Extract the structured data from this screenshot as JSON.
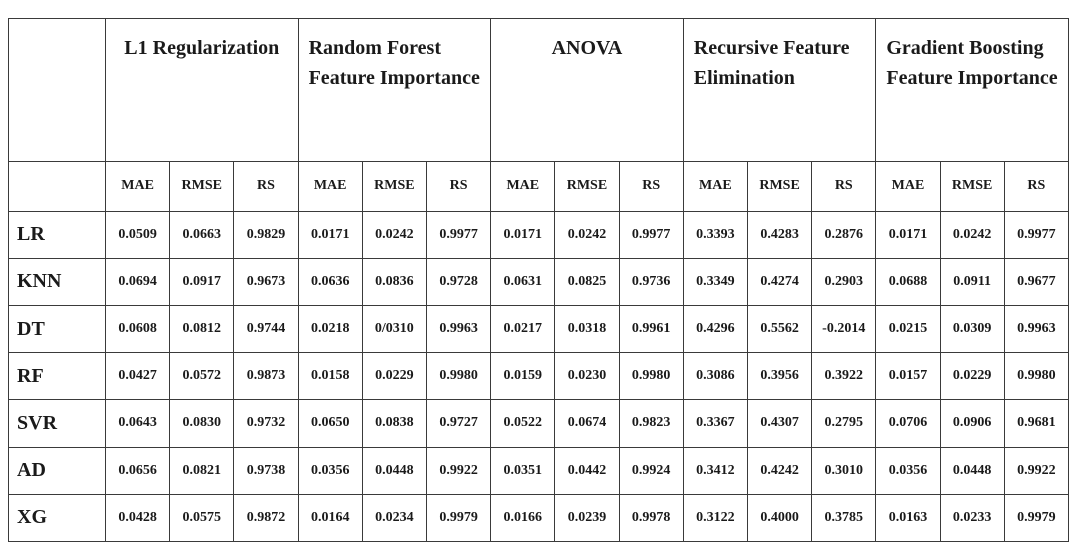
{
  "methods": [
    {
      "name": "L1 Regularization",
      "align": "center"
    },
    {
      "name": "Random Forest Feature Importance",
      "align": "left"
    },
    {
      "name": "ANOVA",
      "align": "center"
    },
    {
      "name": "Recursive Feature Elimination",
      "align": "left"
    },
    {
      "name": "Gradient Boosting Feature Importance",
      "align": "left"
    }
  ],
  "metrics": [
    "MAE",
    "RMSE",
    "RS"
  ],
  "rows": [
    {
      "model": "LR",
      "values": [
        "0.0509",
        "0.0663",
        "0.9829",
        "0.0171",
        "0.0242",
        "0.9977",
        "0.0171",
        "0.0242",
        "0.9977",
        "0.3393",
        "0.4283",
        "0.2876",
        "0.0171",
        "0.0242",
        "0.9977"
      ]
    },
    {
      "model": "KNN",
      "values": [
        "0.0694",
        "0.0917",
        "0.9673",
        "0.0636",
        "0.0836",
        "0.9728",
        "0.0631",
        "0.0825",
        "0.9736",
        "0.3349",
        "0.4274",
        "0.2903",
        "0.0688",
        "0.0911",
        "0.9677"
      ]
    },
    {
      "model": "DT",
      "values": [
        "0.0608",
        "0.0812",
        "0.9744",
        "0.0218",
        "0/0310",
        "0.9963",
        "0.0217",
        "0.0318",
        "0.9961",
        "0.4296",
        "0.5562",
        "-0.2014",
        "0.0215",
        "0.0309",
        "0.9963"
      ]
    },
    {
      "model": "RF",
      "values": [
        "0.0427",
        "0.0572",
        "0.9873",
        "0.0158",
        "0.0229",
        "0.9980",
        "0.0159",
        "0.0230",
        "0.9980",
        "0.3086",
        "0.3956",
        "0.3922",
        "0.0157",
        "0.0229",
        "0.9980"
      ]
    },
    {
      "model": "SVR",
      "values": [
        "0.0643",
        "0.0830",
        "0.9732",
        "0.0650",
        "0.0838",
        "0.9727",
        "0.0522",
        "0.0674",
        "0.9823",
        "0.3367",
        "0.4307",
        "0.2795",
        "0.0706",
        "0.0906",
        "0.9681"
      ]
    },
    {
      "model": "AD",
      "values": [
        "0.0656",
        "0.0821",
        "0.9738",
        "0.0356",
        "0.0448",
        "0.9922",
        "0.0351",
        "0.0442",
        "0.9924",
        "0.3412",
        "0.4242",
        "0.3010",
        "0.0356",
        "0.0448",
        "0.9922"
      ]
    },
    {
      "model": "XG",
      "values": [
        "0.0428",
        "0.0575",
        "0.9872",
        "0.0164",
        "0.0234",
        "0.9979",
        "0.0166",
        "0.0239",
        "0.9978",
        "0.3122",
        "0.4000",
        "0.3785",
        "0.0163",
        "0.0233",
        "0.9979"
      ]
    }
  ]
}
